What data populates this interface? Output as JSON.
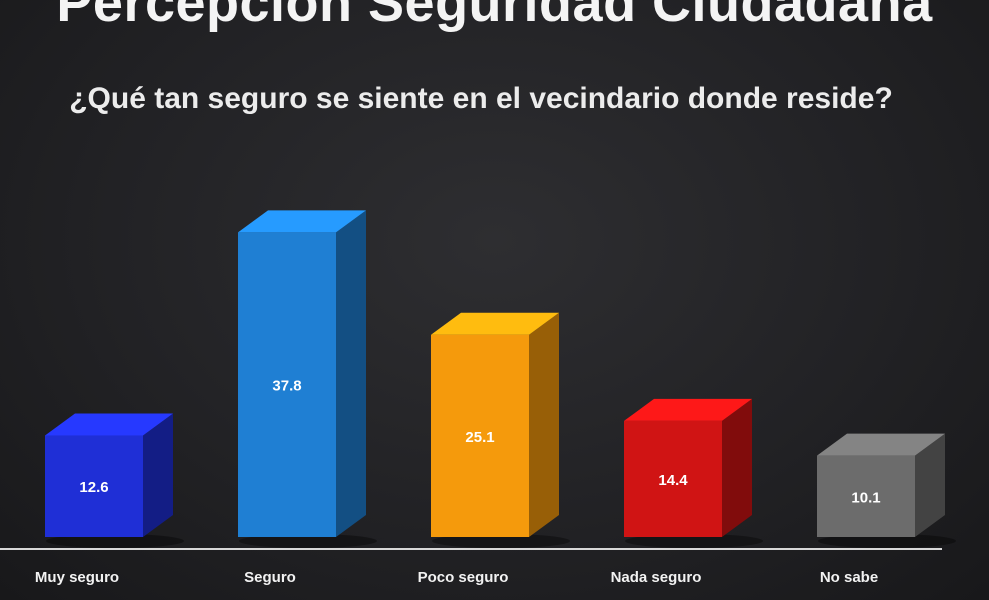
{
  "title": "Percepción Seguridad Ciudadana",
  "subtitle": "¿Qué tan seguro se siente en el vecindario donde reside?",
  "chart_data": {
    "type": "bar",
    "style": "3d",
    "categories": [
      "Muy seguro",
      "Seguro",
      "Poco seguro",
      "Nada seguro",
      "No sabe"
    ],
    "values": [
      12.6,
      37.8,
      25.1,
      14.4,
      10.1
    ],
    "value_labels": [
      "12.6",
      "37.8",
      "25.1",
      "14.4",
      "10.1"
    ],
    "colors": [
      "#1f2fd6",
      "#1f7fd3",
      "#f59a0c",
      "#d01414",
      "#6c6c6c"
    ],
    "xlabel": "",
    "ylabel": "",
    "grid": false,
    "legend": "none"
  }
}
